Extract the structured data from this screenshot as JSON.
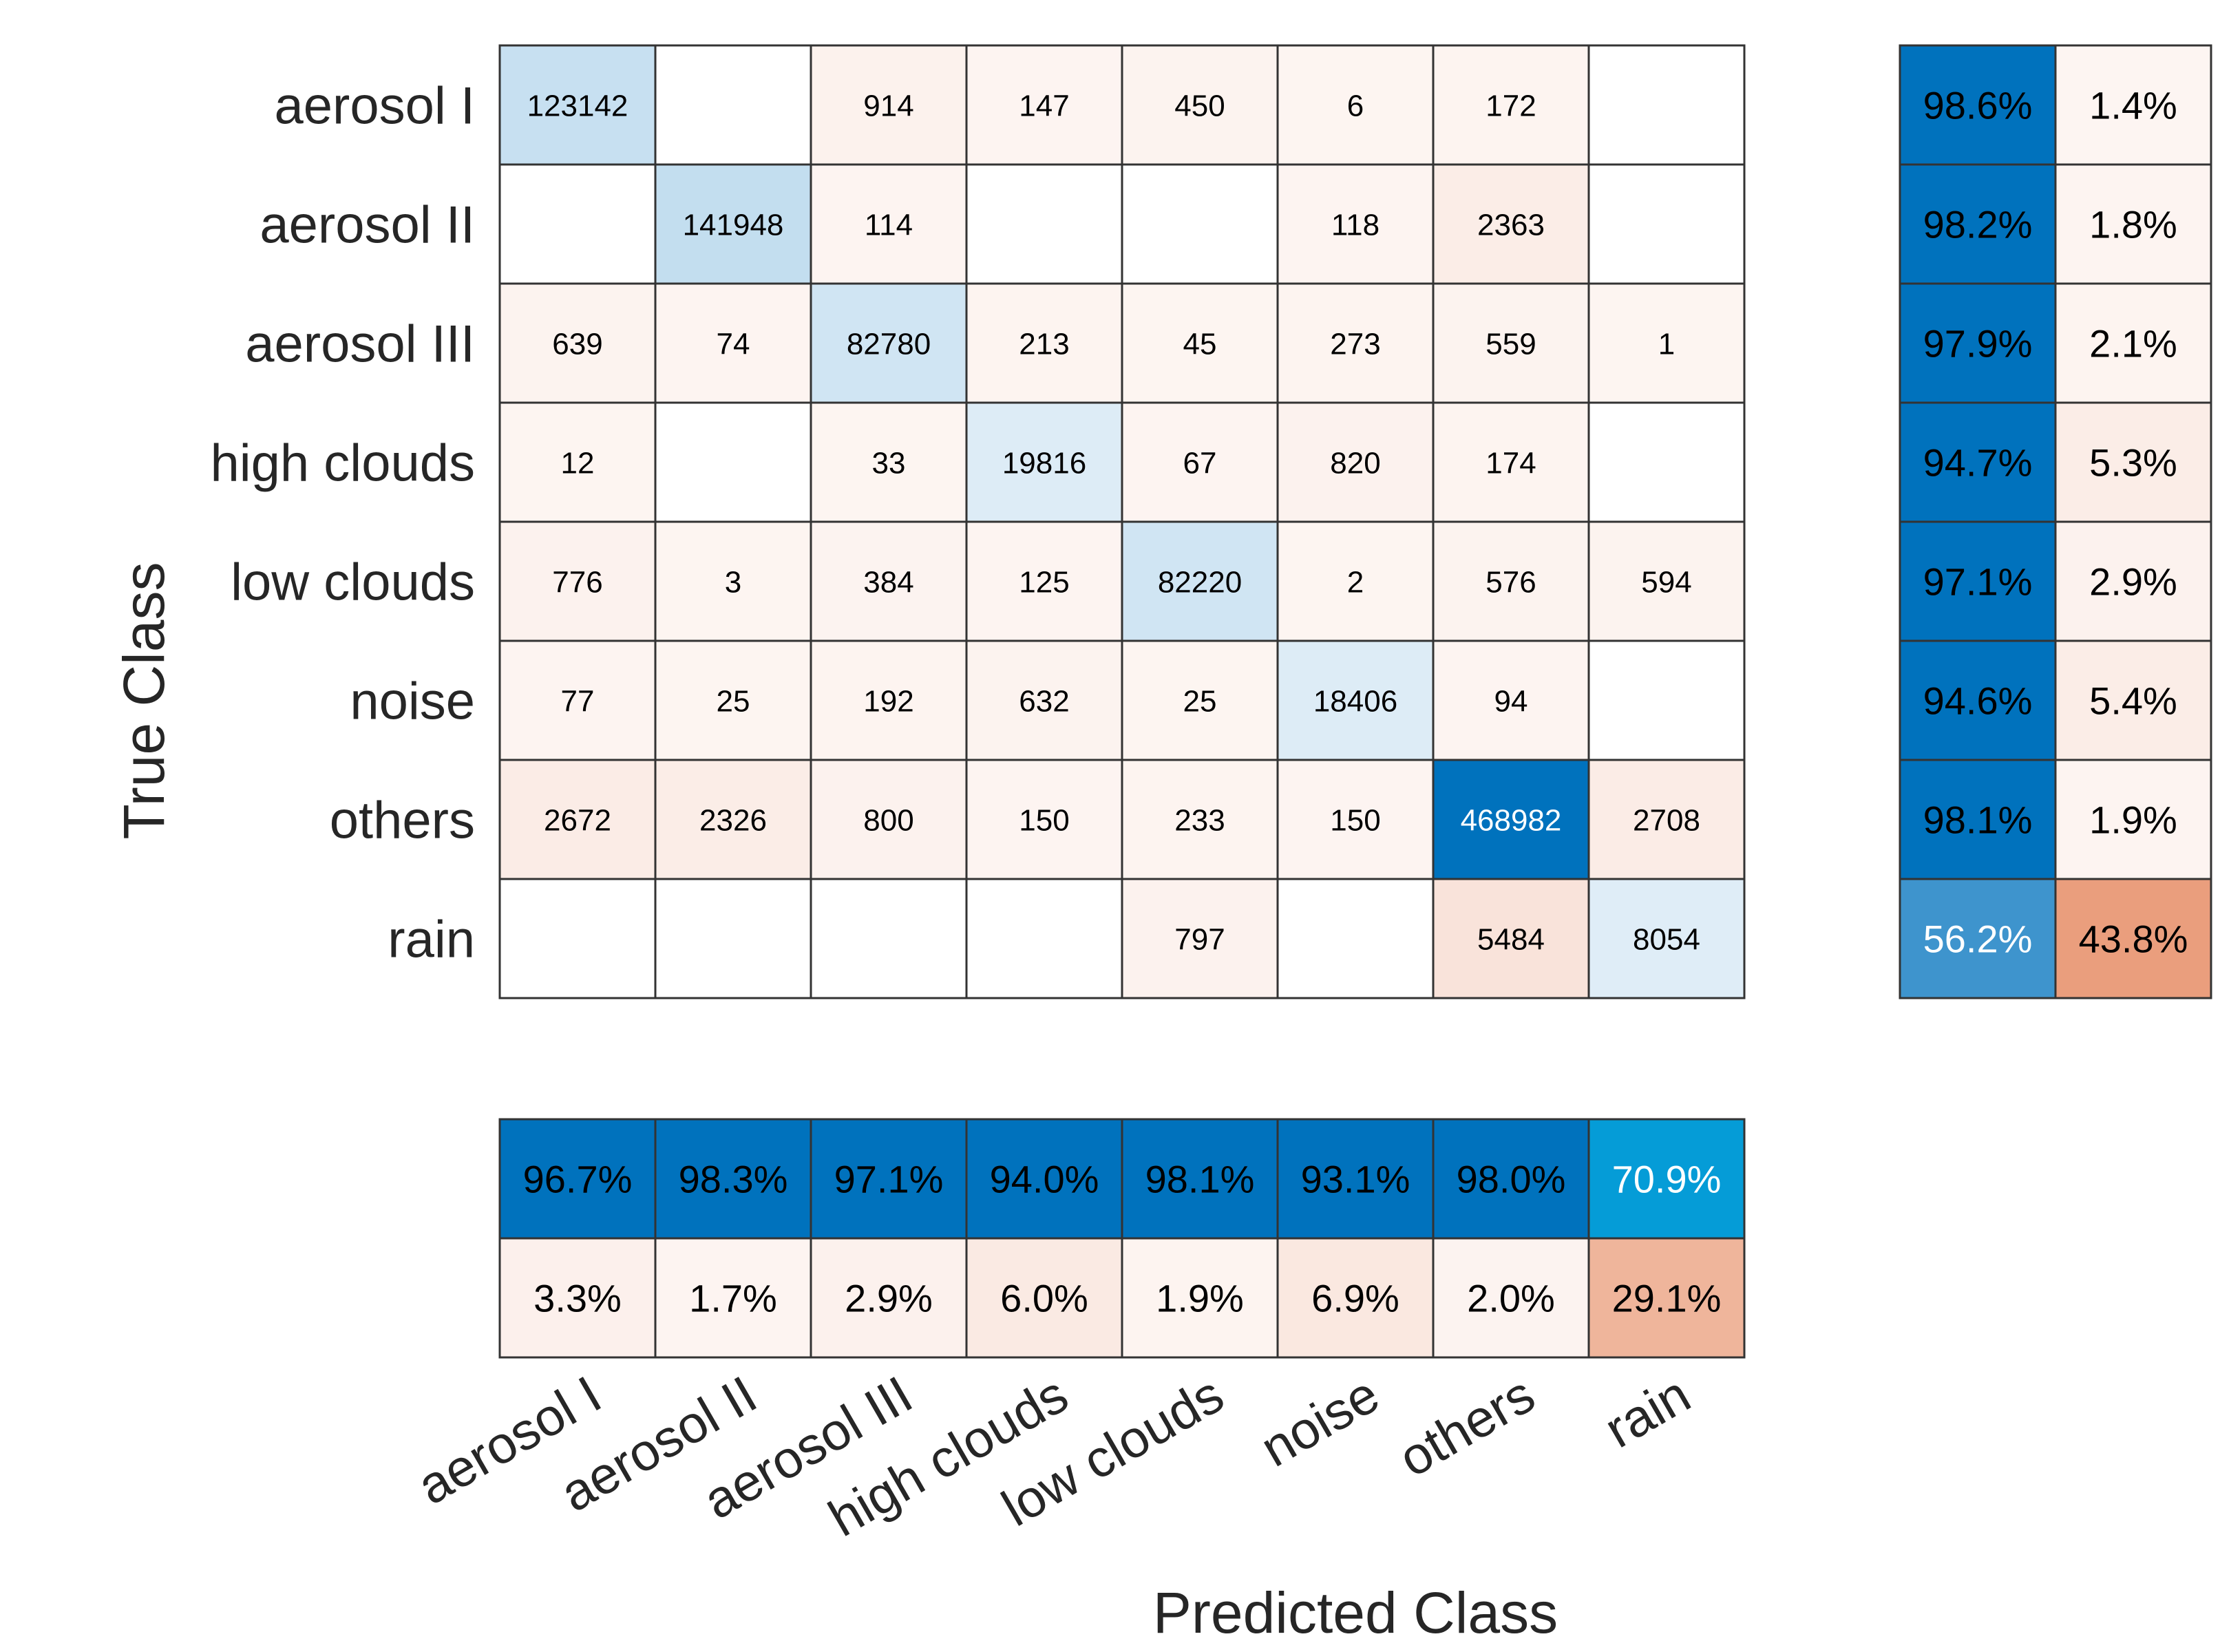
{
  "chart_data": {
    "type": "heatmap",
    "title": "",
    "xlabel": "Predicted Class",
    "ylabel": "True Class",
    "classes": [
      "aerosol I",
      "aerosol II",
      "aerosol III",
      "high clouds",
      "low clouds",
      "noise",
      "others",
      "rain"
    ],
    "matrix": [
      [
        123142,
        null,
        914,
        147,
        450,
        6,
        172,
        null
      ],
      [
        null,
        141948,
        114,
        null,
        null,
        118,
        2363,
        null
      ],
      [
        639,
        74,
        82780,
        213,
        45,
        273,
        559,
        1
      ],
      [
        12,
        null,
        33,
        19816,
        67,
        820,
        174,
        null
      ],
      [
        776,
        3,
        384,
        125,
        82220,
        2,
        576,
        594
      ],
      [
        77,
        25,
        192,
        632,
        25,
        18406,
        94,
        null
      ],
      [
        2672,
        2326,
        800,
        150,
        233,
        150,
        468982,
        2708
      ],
      [
        null,
        null,
        null,
        null,
        797,
        null,
        5484,
        8054
      ]
    ],
    "row_summary": {
      "correct": [
        "98.6%",
        "98.2%",
        "97.9%",
        "94.7%",
        "97.1%",
        "94.6%",
        "98.1%",
        "56.2%"
      ],
      "incorrect": [
        "1.4%",
        "1.8%",
        "2.1%",
        "5.3%",
        "2.9%",
        "5.4%",
        "1.9%",
        "43.8%"
      ]
    },
    "column_summary": {
      "correct": [
        "96.7%",
        "98.3%",
        "97.1%",
        "94.0%",
        "98.1%",
        "93.1%",
        "98.0%",
        "70.9%"
      ],
      "incorrect": [
        "3.3%",
        "1.7%",
        "2.9%",
        "6.0%",
        "1.9%",
        "6.9%",
        "2.0%",
        "29.1%"
      ]
    },
    "colors": {
      "correct_high": "#0072bd",
      "correct_low": "#ffffff",
      "error_high": "#d95319",
      "grid": "#333333"
    }
  }
}
